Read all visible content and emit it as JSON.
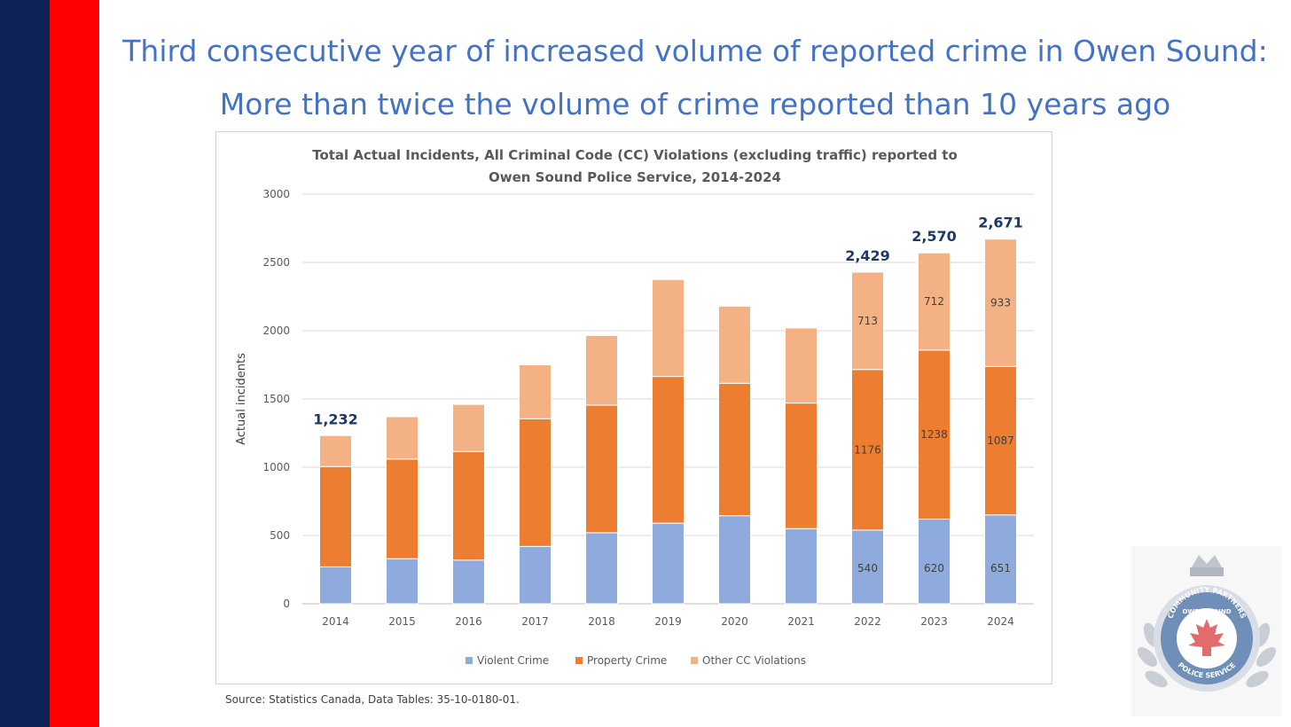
{
  "slide": {
    "headline_line1": "Third consecutive year of increased volume of reported crime in Owen Sound:",
    "headline_line2": "More than twice the volume of crime reported than 10 years ago",
    "source": "Source: Statistics Canada, Data Tables: 35-10-0180-01.",
    "colors": {
      "navy": "#0d2257",
      "red": "#ff0000",
      "headline": "#4472c4"
    }
  },
  "logo": {
    "text_top": "COMMUNITY PARTNERS",
    "text_mid": "OWEN SOUND",
    "text_bottom": "POLICE SERVICE"
  },
  "chart_data": {
    "type": "bar",
    "stacked": true,
    "title_line1": "Total Actual Incidents, All Criminal Code (CC) Violations (excluding traffic) reported to",
    "title_line2": "Owen Sound Police Service, 2014-2024",
    "ylabel": "Actual incidents",
    "xlabel": "",
    "ylim": [
      0,
      3000
    ],
    "yticks": [
      0,
      500,
      1000,
      1500,
      2000,
      2500,
      3000
    ],
    "grid": true,
    "legend_position": "bottom",
    "categories": [
      "2014",
      "2015",
      "2016",
      "2017",
      "2018",
      "2019",
      "2020",
      "2021",
      "2022",
      "2023",
      "2024"
    ],
    "series": [
      {
        "name": "Violent Crime",
        "color": "#8faadc",
        "values": [
          270,
          330,
          320,
          420,
          520,
          590,
          645,
          550,
          540,
          620,
          651
        ],
        "labels": [
          null,
          null,
          null,
          null,
          null,
          null,
          null,
          null,
          "540",
          "620",
          "651"
        ]
      },
      {
        "name": "Property Crime",
        "color": "#ed7d31",
        "values": [
          735,
          730,
          795,
          935,
          935,
          1075,
          970,
          920,
          1176,
          1238,
          1087
        ],
        "labels": [
          null,
          null,
          null,
          null,
          null,
          null,
          null,
          null,
          "1176",
          "1238",
          "1087"
        ]
      },
      {
        "name": "Other CC Violations",
        "color": "#f4b183",
        "values": [
          227,
          310,
          345,
          395,
          510,
          710,
          565,
          550,
          713,
          712,
          933
        ],
        "labels": [
          null,
          null,
          null,
          null,
          null,
          null,
          null,
          null,
          "713",
          "712",
          "933"
        ]
      }
    ],
    "totals": [
      1232,
      1370,
      1460,
      1750,
      1965,
      2375,
      2180,
      2020,
      2429,
      2570,
      2671
    ],
    "total_labels": [
      "1,232",
      null,
      null,
      null,
      null,
      null,
      null,
      null,
      "2,429",
      "2,570",
      "2,671"
    ]
  }
}
